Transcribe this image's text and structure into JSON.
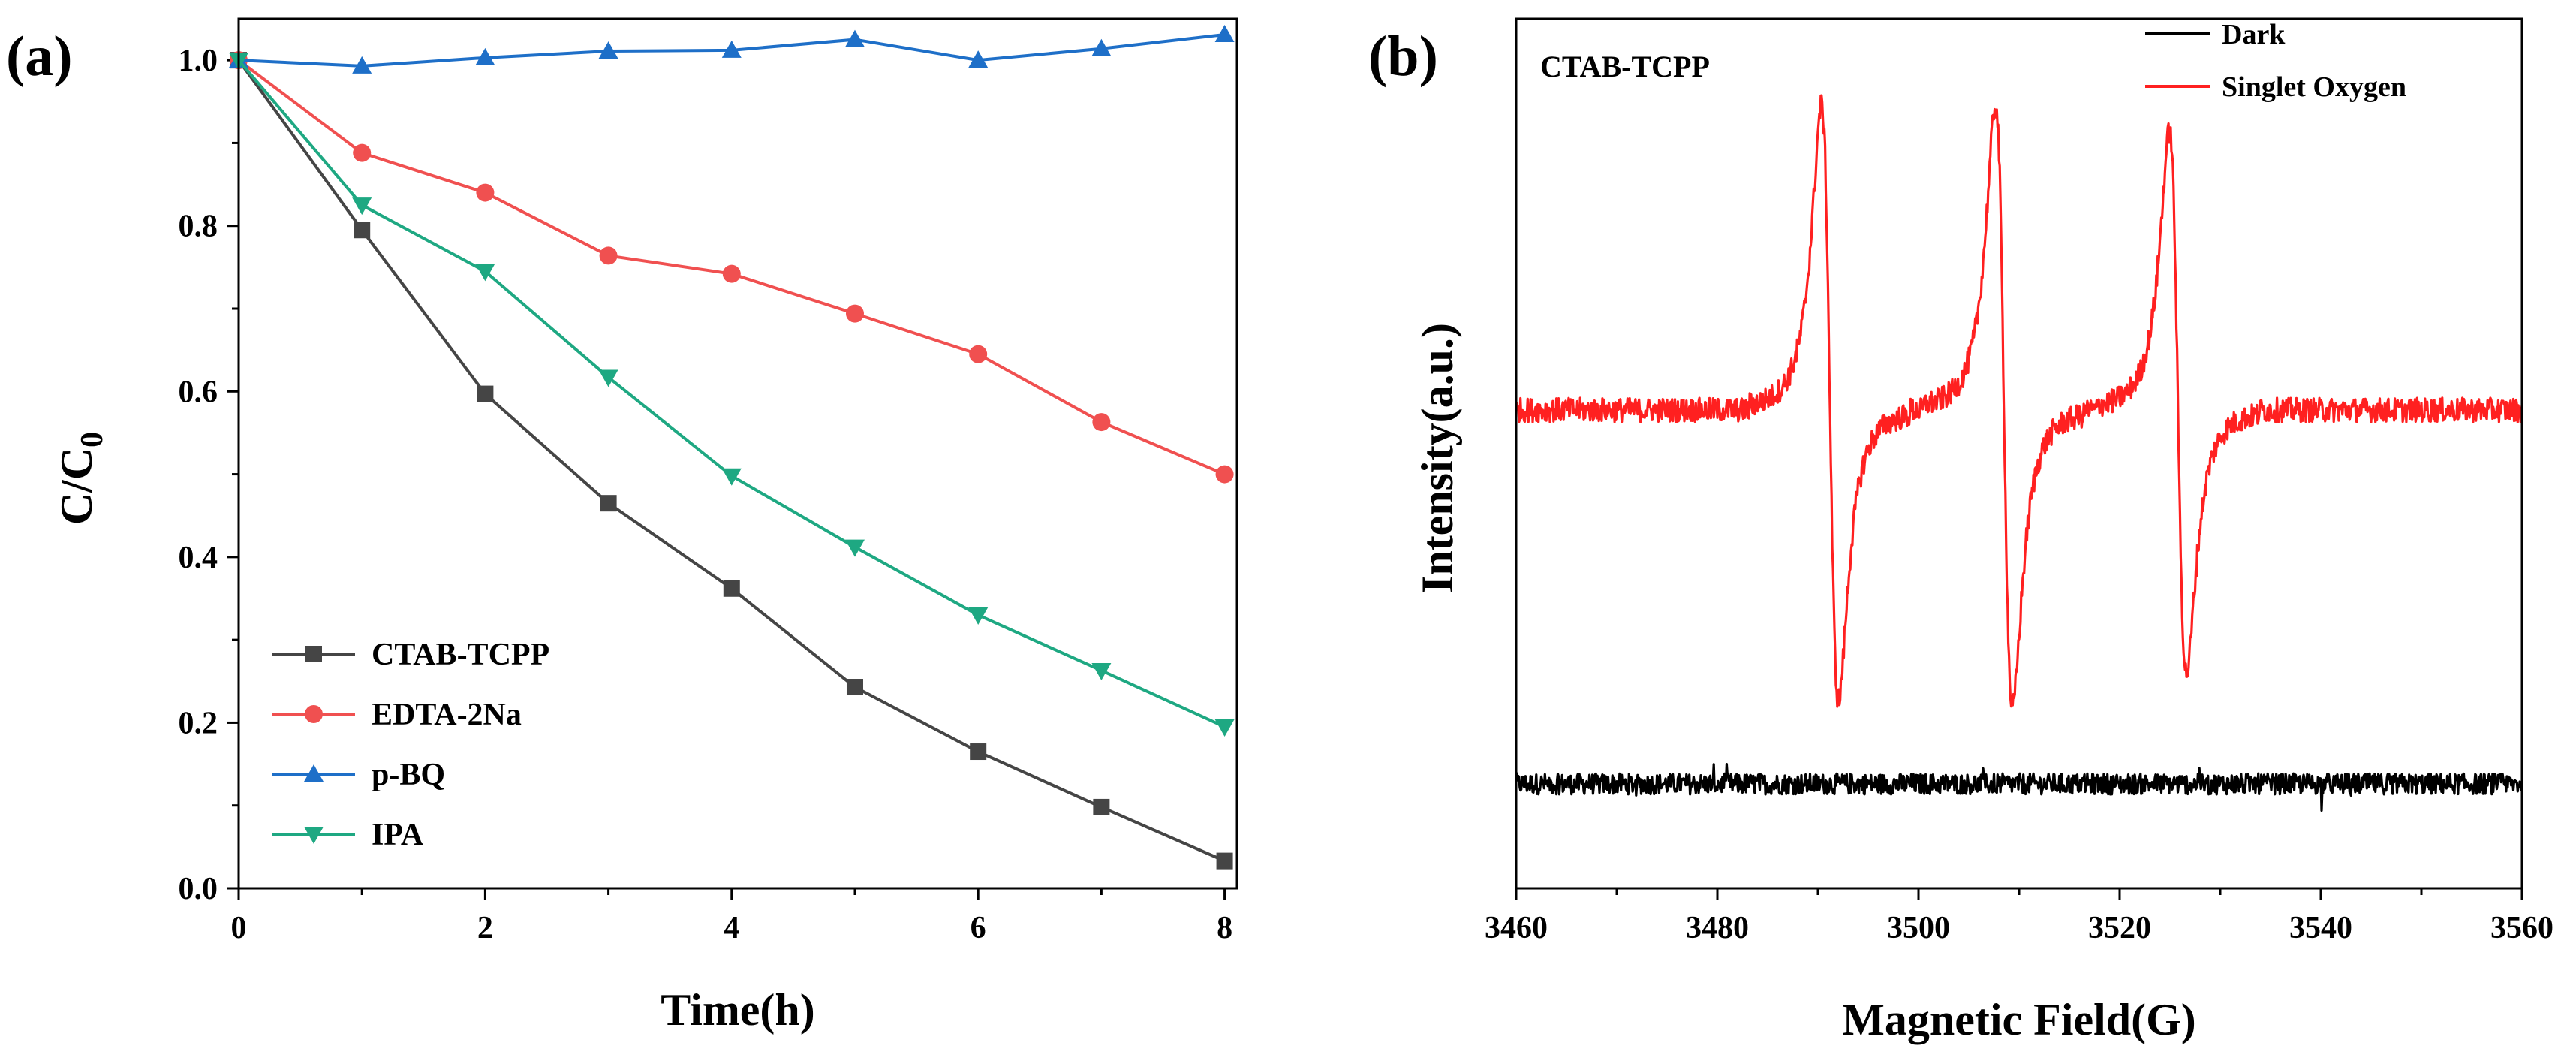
{
  "chart_data": [
    {
      "type": "line",
      "panel_label": "(a)",
      "xlabel": "Time(h)",
      "ylabel": "C/C",
      "ylabel_subscript": "0",
      "xlim": [
        0,
        8.1
      ],
      "ylim": [
        0,
        1.05
      ],
      "x_ticks": [
        "0",
        "2",
        "4",
        "6",
        "8"
      ],
      "y_ticks": [
        "0.0",
        "0.2",
        "0.4",
        "0.6",
        "0.8",
        "1.0"
      ],
      "x": [
        0,
        1,
        2,
        3,
        4,
        5,
        6,
        7,
        8
      ],
      "legend_position": "bottom-left",
      "series": [
        {
          "name": "CTAB-TCPP",
          "color": "#454545",
          "marker": "square",
          "values": [
            1.0,
            0.795,
            0.597,
            0.465,
            0.362,
            0.243,
            0.165,
            0.098,
            0.033
          ]
        },
        {
          "name": "EDTA-2Na",
          "color": "#f05050",
          "marker": "circle",
          "values": [
            1.0,
            0.888,
            0.84,
            0.764,
            0.742,
            0.694,
            0.645,
            0.563,
            0.5
          ]
        },
        {
          "name": "p-BQ",
          "color": "#1e6fc8",
          "marker": "triangle-up",
          "values": [
            1.0,
            0.993,
            1.003,
            1.011,
            1.012,
            1.025,
            1.0,
            1.014,
            1.031
          ]
        },
        {
          "name": "IPA",
          "color": "#1ea882",
          "marker": "triangle-down",
          "values": [
            1.0,
            0.825,
            0.745,
            0.617,
            0.498,
            0.412,
            0.33,
            0.263,
            0.195
          ]
        }
      ]
    },
    {
      "type": "line",
      "panel_label": "(b)",
      "title": "CTAB-TCPP",
      "xlabel": "Magnetic Field(G)",
      "ylabel": "Intensity(a.u.)",
      "xlim": [
        3460,
        3560
      ],
      "ylim": [
        0,
        1
      ],
      "x_ticks": [
        "3460",
        "3480",
        "3500",
        "3520",
        "3540",
        "3560"
      ],
      "legend_position": "top-right",
      "series": [
        {
          "name": "Dark",
          "color": "#000000",
          "baseline": 0.12,
          "noise": 0.012,
          "peaks": []
        },
        {
          "name": "Singlet Oxygen",
          "color": "#ff2020",
          "baseline": 0.55,
          "noise": 0.014,
          "peaks": [
            {
              "center": 3491.2,
              "max": 0.955,
              "min": 0.165
            },
            {
              "center": 3508.5,
              "max": 0.955,
              "min": 0.155
            },
            {
              "center": 3525.8,
              "max": 0.92,
              "min": 0.2
            }
          ]
        }
      ]
    }
  ]
}
